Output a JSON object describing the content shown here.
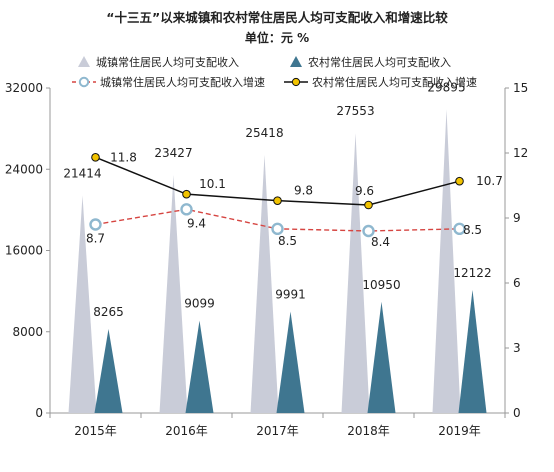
{
  "chart_data": {
    "type": "bar",
    "title": "“十三五”以来城镇和农村常住居民人均可支配收入和增速比较",
    "subtitle": "单位：元    %",
    "categories": [
      "2015年",
      "2016年",
      "2017年",
      "2018年",
      "2019年"
    ],
    "series": [
      {
        "name": "城镇常住居民人均可支配收入",
        "kind": "triangle",
        "axis": "left",
        "values": [
          21414,
          23427,
          25418,
          27553,
          29895
        ],
        "labels": [
          "21414",
          "23427",
          "25418",
          "27553",
          "29895"
        ]
      },
      {
        "name": "农村常住居民人均可支配收入",
        "kind": "triangle",
        "axis": "left",
        "values": [
          8265,
          9099,
          9991,
          10950,
          12122
        ],
        "labels": [
          "8265",
          "9099",
          "9991",
          "10950",
          "12122"
        ]
      },
      {
        "name": "城镇常住居民人均可支配收入增速",
        "kind": "line",
        "axis": "right",
        "style": "dashed",
        "values": [
          8.7,
          9.4,
          8.5,
          8.4,
          8.5
        ],
        "labels": [
          "8.7",
          "9.4",
          "8.5",
          "8.4",
          "8.5"
        ]
      },
      {
        "name": "农村常住居民人均可支配收入增速",
        "kind": "line",
        "axis": "right",
        "style": "solid",
        "values": [
          11.8,
          10.1,
          9.8,
          9.6,
          10.7
        ],
        "labels": [
          "11.8",
          "10.1",
          "9.8",
          "9.6",
          "10.7"
        ]
      }
    ],
    "y_left": {
      "min": 0,
      "max": 32000,
      "ticks": [
        "0",
        "8000",
        "16000",
        "24000",
        "32000"
      ]
    },
    "y_right": {
      "min": 0,
      "max": 15,
      "ticks": [
        "0",
        "3",
        "6",
        "9",
        "12",
        "15"
      ]
    },
    "grid": false,
    "legend_position": "top",
    "colors": {
      "urban_income": "#c9ccd8",
      "rural_income": "#3f7690",
      "urban_growth": "#d64541",
      "urban_growth_marker": "#8fb8cf",
      "rural_growth": "#111111",
      "rural_growth_marker": "#f2c300"
    }
  }
}
